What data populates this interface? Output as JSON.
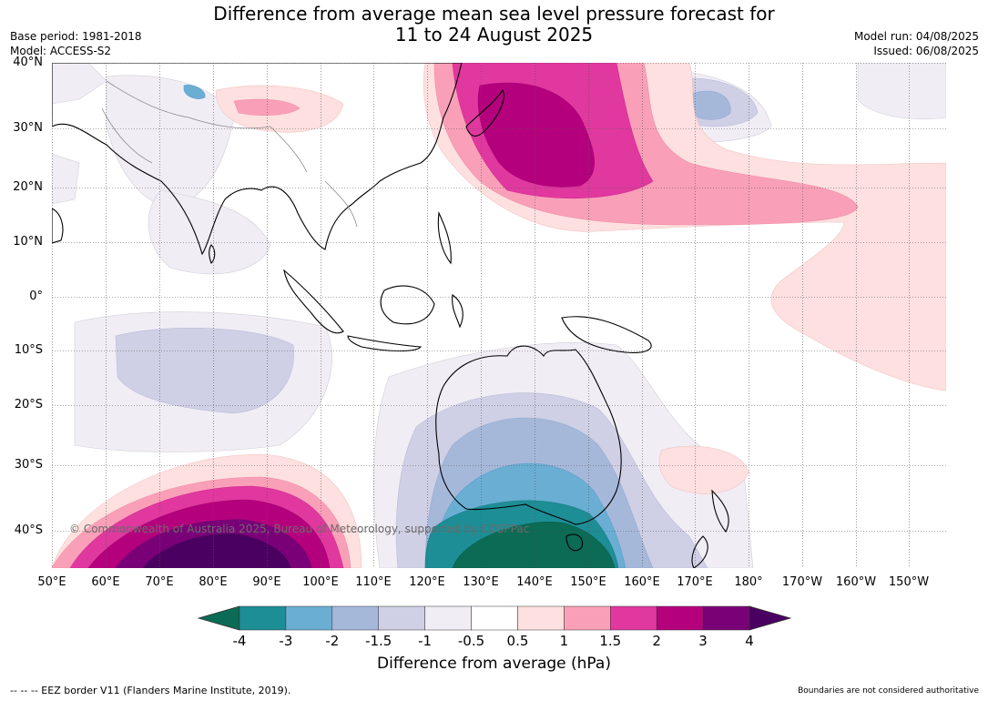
{
  "title": {
    "line1": "Difference from average mean sea level pressure forecast for",
    "line2": "11 to 24 August 2025"
  },
  "meta": {
    "base_period": "Base period: 1981-2018",
    "model": "Model: ACCESS-S2",
    "model_run": "Model run: 04/08/2025",
    "issued": "Issued: 06/08/2025"
  },
  "map": {
    "lat_labels": [
      "40°N",
      "30°N",
      "20°N",
      "10°N",
      "0°",
      "10°S",
      "20°S",
      "30°S",
      "40°S"
    ],
    "lon_labels": [
      "50°E",
      "60°E",
      "70°E",
      "80°E",
      "90°E",
      "100°E",
      "110°E",
      "120°E",
      "130°E",
      "140°E",
      "150°E",
      "160°E",
      "170°E",
      "180°",
      "170°W",
      "160°W",
      "150°W"
    ],
    "copyright": "© Commonwealth of Australia 2025, Bureau of Meteorology, supported by COSPPac"
  },
  "colorbar": {
    "title": "Difference from average (hPa)",
    "tick_labels": [
      "-4",
      "-3",
      "-2",
      "-1.5",
      "-1",
      "-0.5",
      "0.5",
      "1",
      "1.5",
      "2",
      "3",
      "4"
    ],
    "colors": [
      "#0b6b55",
      "#1e8e96",
      "#6aaed3",
      "#a6b8da",
      "#cfd0e5",
      "#f1edf5",
      "#ffffff",
      "#fde0df",
      "#f9a0b8",
      "#e0389e",
      "#b5007e",
      "#7a0078",
      "#4a0060"
    ]
  },
  "footer": {
    "eez": "--  --  -- EEZ border V11 (Flanders Marine Institute, 2019).",
    "boundaries": "Boundaries are not considered authoritative"
  }
}
